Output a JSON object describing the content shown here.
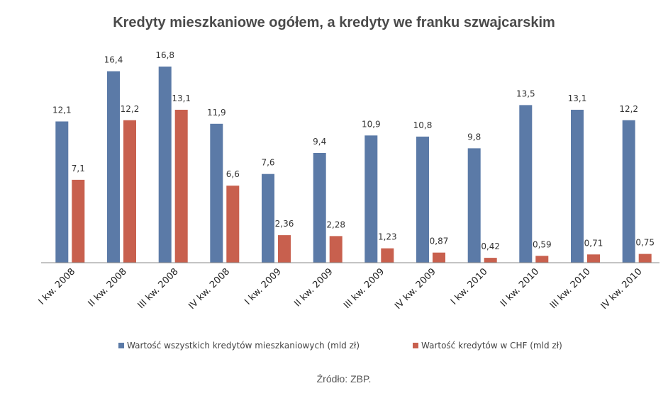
{
  "chart_data": {
    "type": "bar",
    "title": "Kredyty mieszkaniowe ogółem, a kredyty we franku szwajcarskim",
    "categories": [
      "I kw. 2008",
      "II kw. 2008",
      "III kw. 2008",
      "IV kw. 2008",
      "I kw. 2009",
      "II kw. 2009",
      "III kw. 2009",
      "IV kw. 2009",
      "I kw. 2010",
      "II kw. 2010",
      "III kw. 2010",
      "IV kw. 2010"
    ],
    "series": [
      {
        "name": "Wartość wszystkich  kredytów mieszkaniowych  (mld zł)",
        "color": "#5b7aa7",
        "values": [
          12.1,
          16.4,
          16.8,
          11.9,
          7.6,
          9.4,
          10.9,
          10.8,
          9.8,
          13.5,
          13.1,
          12.2
        ],
        "labels": [
          "12,1",
          "16,4",
          "16,8",
          "11,9",
          "7,6",
          "9,4",
          "10,9",
          "10,8",
          "9,8",
          "13,5",
          "13,1",
          "12,2"
        ]
      },
      {
        "name": "Wartość kredytów w CHF  (mld zł)",
        "color": "#c8604e",
        "values": [
          7.1,
          12.2,
          13.1,
          6.6,
          2.36,
          2.28,
          1.23,
          0.87,
          0.42,
          0.59,
          0.71,
          0.75
        ],
        "labels": [
          "7,1",
          "12,2",
          "13,1",
          "6,6",
          "2,36",
          "2,28",
          "1,23",
          "0,87",
          "0,42",
          "0,59",
          "0,71",
          "0,75"
        ]
      }
    ],
    "ylim": [
      0,
      16.8
    ],
    "grid": false,
    "legend_position": "bottom"
  },
  "source_note": "Źródło: ZBP."
}
